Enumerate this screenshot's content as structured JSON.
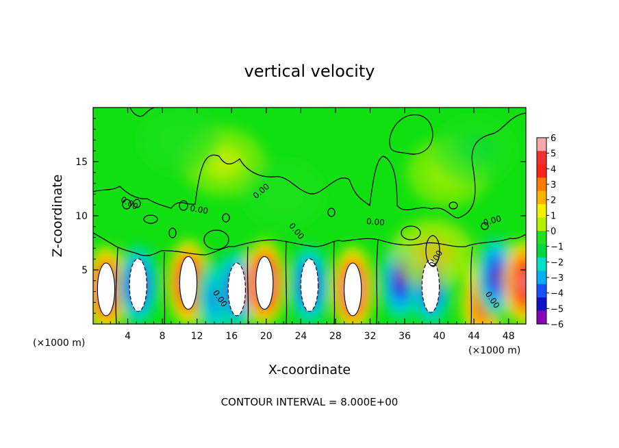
{
  "chart_data": {
    "type": "heatmap",
    "title": "vertical velocity",
    "xlabel": "X-coordinate",
    "ylabel": "Z-coordinate",
    "x_units_left": "(×1000 m)",
    "x_units_right": "(×1000 m)",
    "footer": "CONTOUR INTERVAL = 8.000E+00",
    "xlim": [
      0,
      50
    ],
    "ylim": [
      0,
      20
    ],
    "x_ticks": [
      4,
      8,
      12,
      16,
      20,
      24,
      28,
      32,
      36,
      40,
      44,
      48
    ],
    "y_ticks": [
      5,
      10,
      15
    ],
    "contour_labels": [
      "0.00",
      "0.00",
      "0.00",
      "0.00",
      "0.00",
      "0.00",
      "0.00",
      "0.00",
      "0.00"
    ],
    "colorbar": {
      "ticks": [
        6,
        5,
        4,
        3,
        2,
        1,
        0,
        -1,
        -2,
        -3,
        -4,
        -5,
        -6
      ],
      "colors": [
        "#f7a8a8",
        "#f03030",
        "#ff2020",
        "#ff7a00",
        "#ffb300",
        "#f2f200",
        "#b4f000",
        "#20e020",
        "#00d840",
        "#00e0c8",
        "#00b0f0",
        "#1a50ff",
        "#1010c8",
        "#8a00b8"
      ]
    },
    "cells": [
      {
        "x": 1.5,
        "z": 3.2,
        "w": 6.2
      },
      {
        "x": 5.2,
        "z": 3.6,
        "w": -5.8
      },
      {
        "x": 11.0,
        "z": 3.8,
        "w": 5.8
      },
      {
        "x": 14.2,
        "z": 2.4,
        "w": -3.5
      },
      {
        "x": 16.6,
        "z": 3.2,
        "w": -6.0
      },
      {
        "x": 19.8,
        "z": 3.8,
        "w": 6.5
      },
      {
        "x": 25.0,
        "z": 3.6,
        "w": -6.0
      },
      {
        "x": 30.0,
        "z": 3.2,
        "w": 6.3
      },
      {
        "x": 35.5,
        "z": 4.0,
        "w": -5.5
      },
      {
        "x": 39.0,
        "z": 3.5,
        "w": -6.0
      },
      {
        "x": 39.2,
        "z": 6.5,
        "w": 1.8
      },
      {
        "x": 45.0,
        "z": 2.0,
        "w": 4.0
      },
      {
        "x": 46.6,
        "z": 4.4,
        "w": -5.5
      },
      {
        "x": 49.8,
        "z": 3.8,
        "w": 5.5
      },
      {
        "x": 15.0,
        "z": 15.0,
        "w": 0.9
      },
      {
        "x": 41.0,
        "z": 14.0,
        "w": 0.8
      },
      {
        "x": 22.0,
        "z": 12.0,
        "w": -0.8
      },
      {
        "x": 44.0,
        "z": 16.0,
        "w": -0.9
      },
      {
        "x": 10.0,
        "z": 17.0,
        "w": -0.4
      }
    ]
  }
}
